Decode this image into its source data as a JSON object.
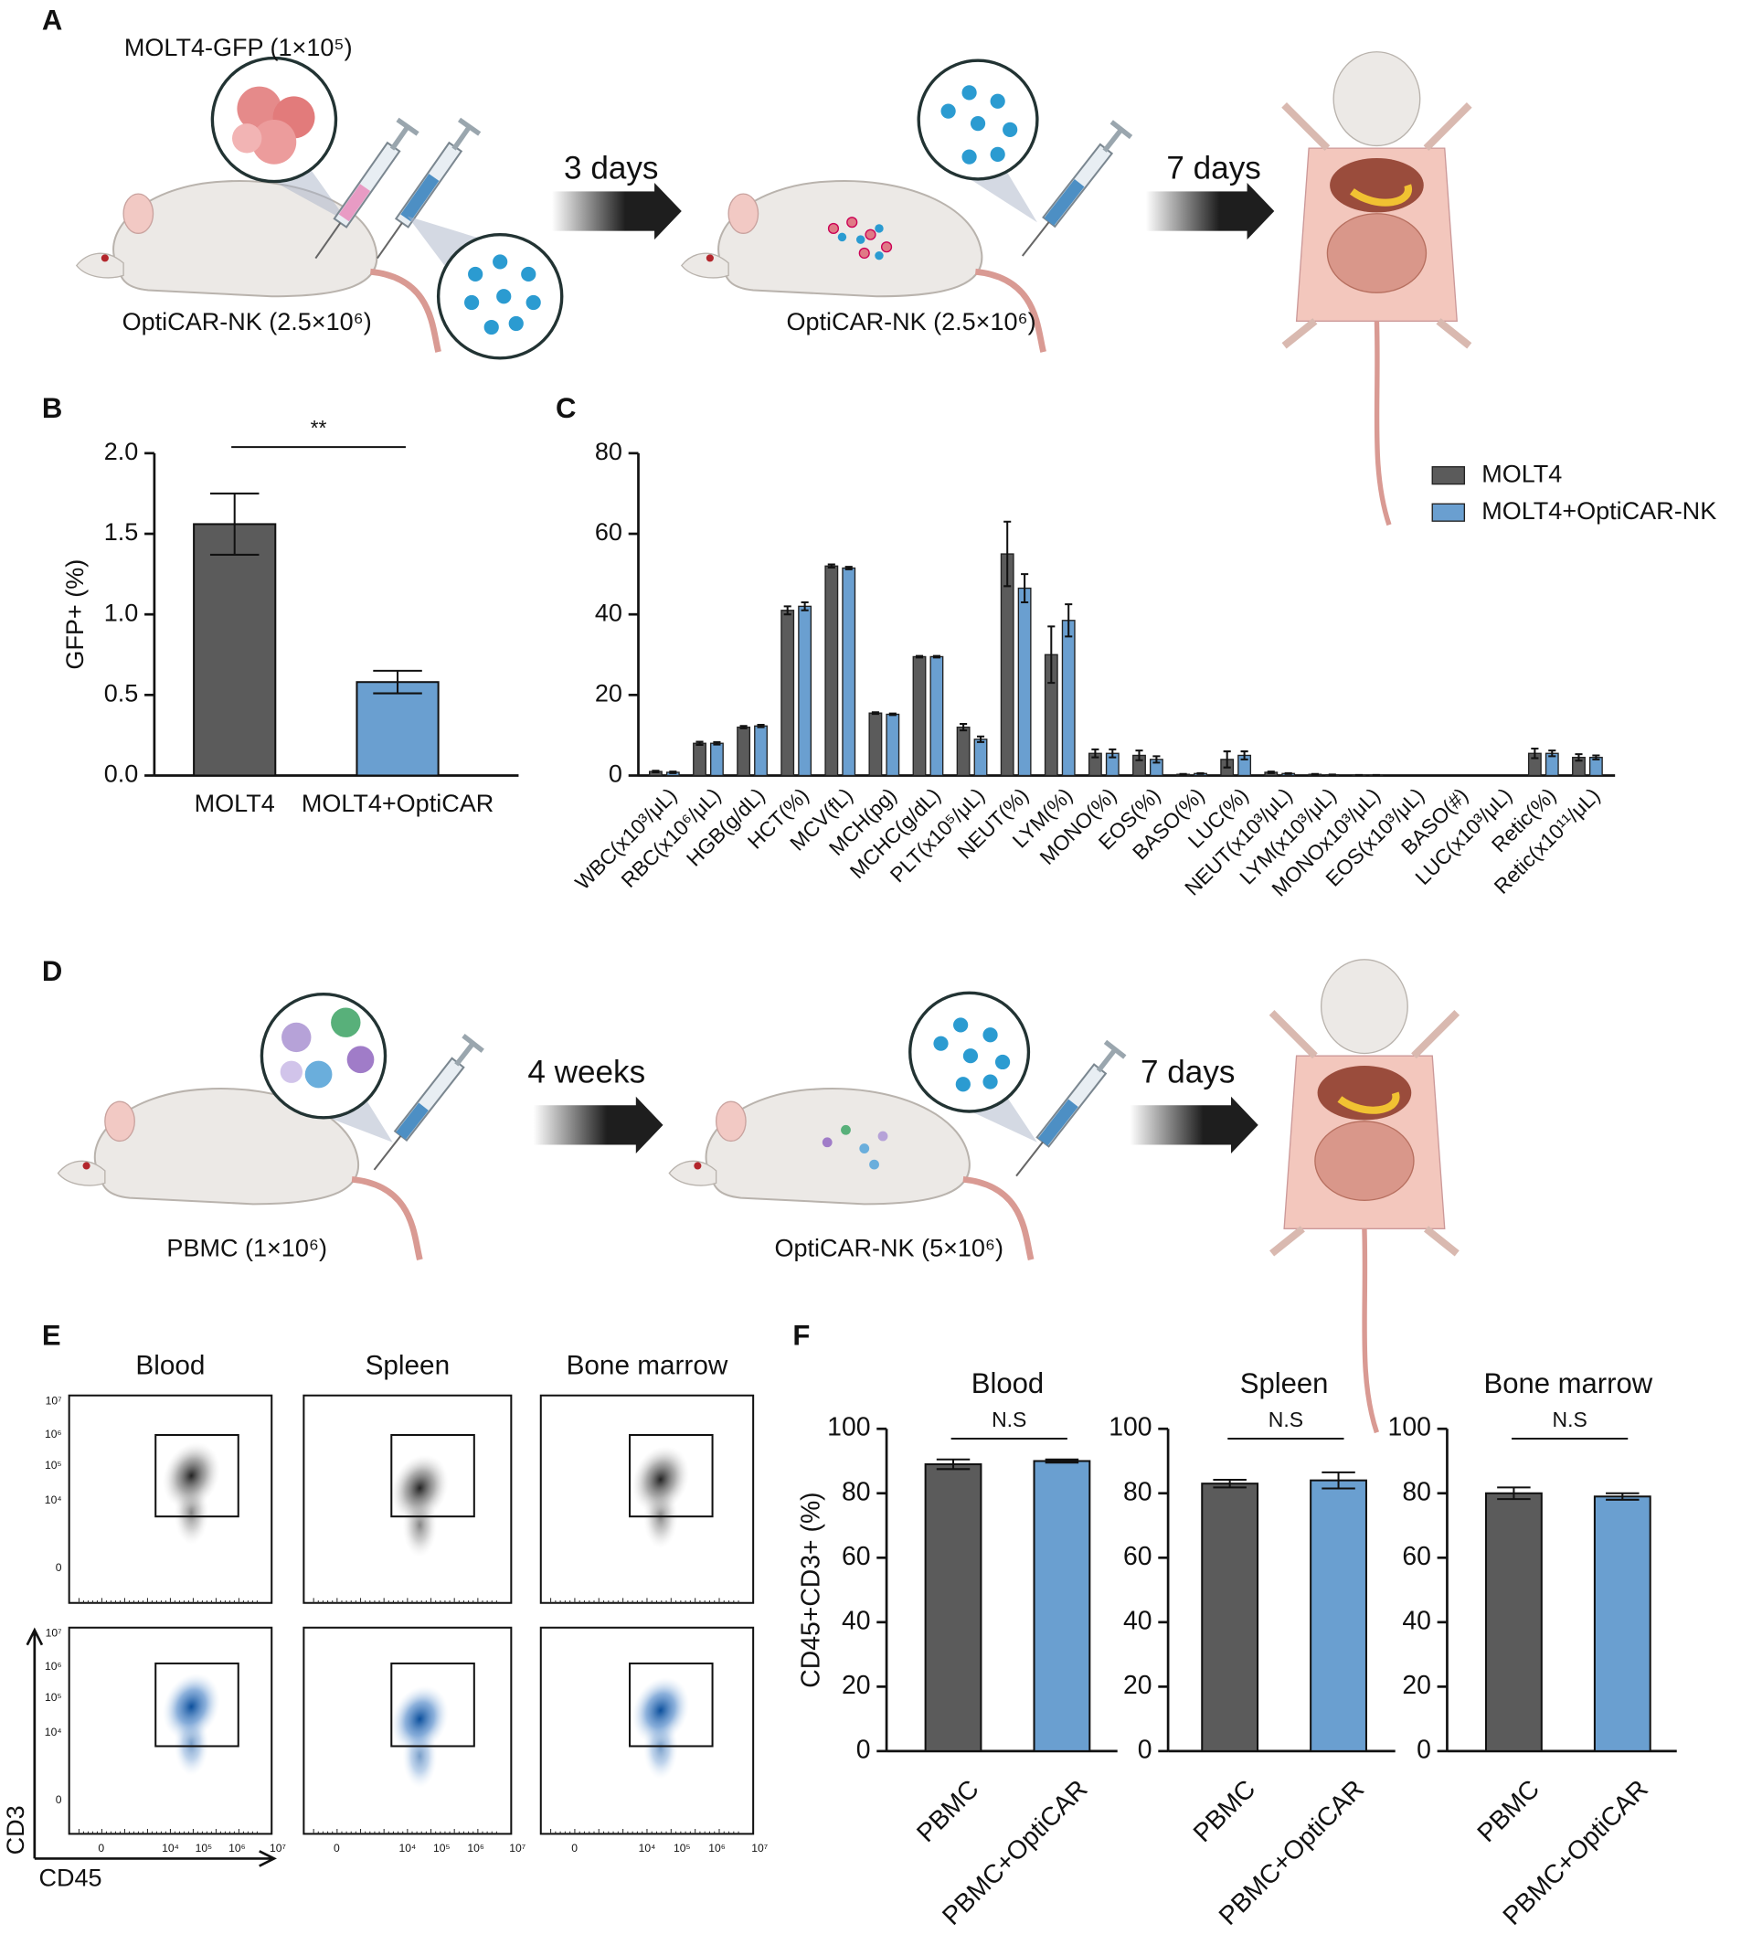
{
  "panel_labels": [
    "A",
    "B",
    "C",
    "D",
    "E",
    "F"
  ],
  "diagram_a": {
    "injection_1_top": "MOLT4-GFP (1×10⁵)",
    "injection_1_bottom": "OptiCAR-NK (2.5×10⁶)",
    "interval_1": "3 days",
    "injection_2": "OptiCAR-NK (2.5×10⁶)",
    "interval_2": "7 days"
  },
  "diagram_d": {
    "injection_1": "PBMC (1×10⁶)",
    "interval_1": "4 weeks",
    "injection_2": "OptiCAR-NK (5×10⁶)",
    "interval_2": "7 days"
  },
  "flow_e": {
    "tissues": [
      "Blood",
      "Spleen",
      "Bone marrow"
    ],
    "y_label": "CD3",
    "x_label": "CD45",
    "y_tick_labels": [
      "10⁷",
      "10⁶",
      "10⁵",
      "10⁴",
      "0"
    ],
    "x_tick_labels": [
      "0",
      "10⁴",
      "10⁵",
      "10⁶",
      "10⁷"
    ]
  },
  "chart_data": [
    {
      "type": "bar",
      "y_label": "GFP+ (%)",
      "categories": [
        "MOLT4",
        "MOLT4+OptiCAR"
      ],
      "values": [
        1.56,
        0.58
      ],
      "errors": [
        0.19,
        0.07
      ],
      "colors": [
        "#5b5b5b",
        "#6a9fd0"
      ],
      "ylim": [
        0,
        2
      ],
      "yticks": [
        {
          "value": 0,
          "label": "0.0"
        },
        {
          "value": 0.5,
          "label": "0.5"
        },
        {
          "value": 1,
          "label": "1.0"
        },
        {
          "value": 1.5,
          "label": "1.5"
        },
        {
          "value": 2,
          "label": "2.0"
        }
      ],
      "annotation": "**"
    },
    {
      "type": "grouped_bar",
      "categories": [
        "WBC(x10³/μL)",
        "RBC(x10⁶/μL)",
        "HGB(g/dL)",
        "HCT(%)",
        "MCV(fL)",
        "MCH(pg)",
        "MCHC(g/dL)",
        "PLT(x10⁵/μL)",
        "NEUT(%)",
        "LYM(%)",
        "MONO(%)",
        "EOS(%)",
        "BASO(%)",
        "LUC(%)",
        "NEUT(x10³/μL)",
        "LYM(x10³/μL)",
        "MONOx10³/μL)",
        "EOS(x10³/μL)",
        "BASO(#)",
        "LUC(x10³/μL)",
        "Retic(%)",
        "Retic(x10¹¹/μL)"
      ],
      "series": [
        {
          "name": "MOLT4",
          "color": "#5b5b5b",
          "values": [
            1,
            8,
            12,
            41,
            52,
            15.5,
            29.5,
            12,
            55,
            30,
            5.5,
            5,
            0.3,
            4,
            0.8,
            0.3,
            0.1,
            0,
            0,
            0,
            5.5,
            4.5
          ],
          "errors": [
            0.2,
            0.4,
            0.3,
            1,
            0.4,
            0.2,
            0.2,
            0.8,
            8,
            7,
            1,
            1.2,
            0.1,
            2,
            0.2,
            0.1,
            0.05,
            0,
            0,
            0,
            1.2,
            0.8
          ]
        },
        {
          "name": "MOLT4+OptiCAR-NK",
          "color": "#6a9fd0",
          "values": [
            0.8,
            8,
            12.3,
            42,
            51.5,
            15.2,
            29.5,
            9,
            46.5,
            38.5,
            5.5,
            4,
            0.5,
            5,
            0.5,
            0.2,
            0.1,
            0,
            0,
            0,
            5.5,
            4.5
          ],
          "errors": [
            0.2,
            0.3,
            0.3,
            1,
            0.3,
            0.2,
            0.2,
            0.7,
            3.5,
            4,
            1,
            0.8,
            0.1,
            1,
            0.1,
            0.05,
            0.05,
            0,
            0,
            0,
            0.7,
            0.5
          ]
        }
      ],
      "ylim": [
        0,
        80
      ],
      "yticks": [
        0,
        20,
        40,
        60,
        80
      ],
      "legend": "upper right"
    },
    {
      "type": "bar",
      "title": "Blood",
      "y_label": "CD45+CD3+ (%)",
      "categories": [
        "PBMC",
        "PBMC+OptiCAR"
      ],
      "values": [
        89,
        90
      ],
      "errors": [
        1.5,
        0.5
      ],
      "colors": [
        "#5b5b5b",
        "#6a9fd0"
      ],
      "ylim": [
        0,
        100
      ],
      "yticks": [
        0,
        20,
        40,
        60,
        80,
        100
      ],
      "annotation": "N.S"
    },
    {
      "type": "bar",
      "title": "Spleen",
      "categories": [
        "PBMC",
        "PBMC+OptiCAR"
      ],
      "values": [
        83,
        84
      ],
      "errors": [
        1.2,
        2.5
      ],
      "colors": [
        "#5b5b5b",
        "#6a9fd0"
      ],
      "ylim": [
        0,
        100
      ],
      "yticks": [
        0,
        20,
        40,
        60,
        80,
        100
      ],
      "annotation": "N.S"
    },
    {
      "type": "bar",
      "title": "Bone marrow",
      "categories": [
        "PBMC",
        "PBMC+OptiCAR"
      ],
      "values": [
        80,
        79
      ],
      "errors": [
        1.8,
        1
      ],
      "colors": [
        "#5b5b5b",
        "#6a9fd0"
      ],
      "ylim": [
        0,
        100
      ],
      "yticks": [
        0,
        20,
        40,
        60,
        80,
        100
      ],
      "annotation": "N.S"
    }
  ]
}
